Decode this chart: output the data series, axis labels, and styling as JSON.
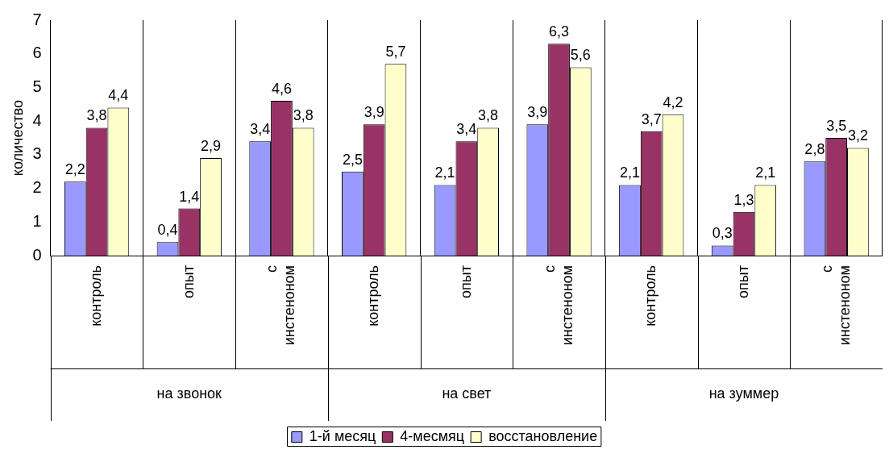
{
  "chart_data": {
    "type": "bar",
    "ylabel": "количество",
    "categories": [
      "контроль",
      "опыт",
      "с инстеноном",
      "контроль",
      "опыт",
      "с инстеноном",
      "контроль",
      "опыт",
      "с инстеноном"
    ],
    "annotations": [
      "на звонок",
      "на свет",
      "на зуммер"
    ],
    "series": [
      {
        "name": "1-й месяц",
        "color": "#9999ff",
        "values": [
          2.2,
          0.4,
          3.4,
          2.5,
          2.1,
          3.9,
          2.1,
          0.3,
          2.8
        ],
        "value_labels": [
          "2,2",
          "0,4",
          "3,4",
          "2,5",
          "2,1",
          "3,9",
          "2,1",
          "0,3",
          "2,8"
        ]
      },
      {
        "name": "4-месмяц",
        "color": "#993366",
        "values": [
          3.8,
          1.4,
          4.6,
          3.9,
          3.4,
          6.3,
          3.7,
          1.3,
          3.5
        ],
        "value_labels": [
          "3,8",
          "1,4",
          "4,6",
          "3,9",
          "3,4",
          "6,3",
          "3,7",
          "1,3",
          "3,5"
        ]
      },
      {
        "name": "восстановление",
        "color": "#ffffcc",
        "values": [
          4.4,
          2.9,
          3.8,
          5.7,
          3.8,
          5.6,
          4.2,
          2.1,
          3.2
        ],
        "value_labels": [
          "4,4",
          "2,9",
          "3,8",
          "5,7",
          "3,8",
          "5,6",
          "4,2",
          "2,1",
          "3,2"
        ]
      }
    ],
    "ylim": [
      0,
      7
    ],
    "yticks": [
      0,
      1,
      2,
      3,
      4,
      5,
      6,
      7
    ],
    "grid": "x",
    "legend": "bottom"
  }
}
